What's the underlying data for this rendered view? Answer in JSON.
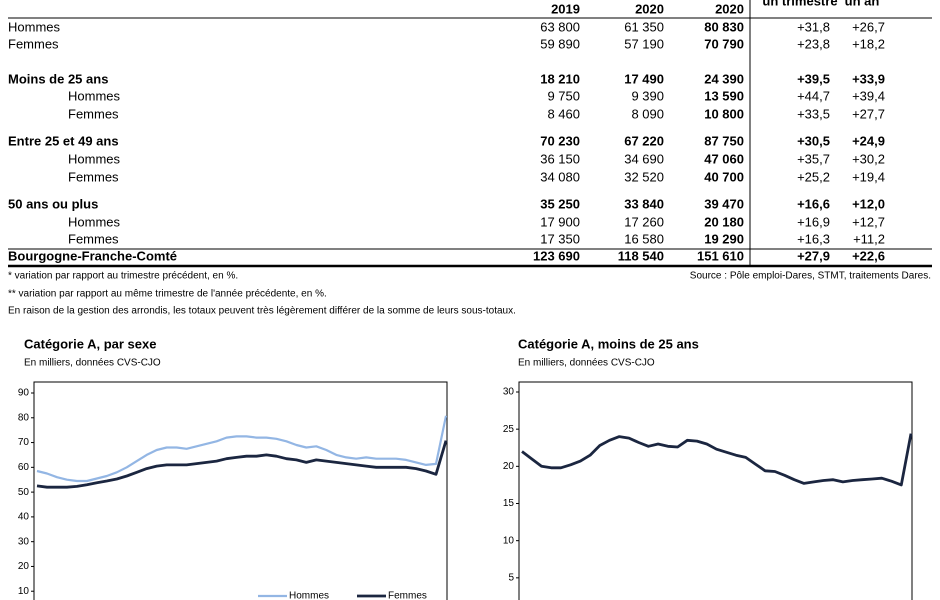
{
  "table": {
    "columns": [
      "2019",
      "2020",
      "2020",
      "un trimestre",
      "un an"
    ],
    "rows": [
      {
        "label": "Hommes",
        "level": 0,
        "bold": false,
        "values": [
          "63 800",
          "61 350",
          "80 830",
          "+31,8",
          "+26,7"
        ]
      },
      {
        "label": "Femmes",
        "level": 0,
        "bold": false,
        "values": [
          "59 890",
          "57 190",
          "70 790",
          "+23,8",
          "+18,2"
        ]
      },
      {
        "label": "Moins de 25 ans",
        "level": 0,
        "bold": true,
        "values": [
          "18 210",
          "17 490",
          "24 390",
          "+39,5",
          "+33,9"
        ]
      },
      {
        "label": "Hommes",
        "level": 1,
        "bold": false,
        "values": [
          "9 750",
          "9 390",
          "13 590",
          "+44,7",
          "+39,4"
        ]
      },
      {
        "label": "Femmes",
        "level": 1,
        "bold": false,
        "values": [
          "8 460",
          "8 090",
          "10 800",
          "+33,5",
          "+27,7"
        ]
      },
      {
        "label": "Entre 25 et 49 ans",
        "level": 0,
        "bold": true,
        "values": [
          "70 230",
          "67 220",
          "87 750",
          "+30,5",
          "+24,9"
        ]
      },
      {
        "label": "Hommes",
        "level": 1,
        "bold": false,
        "values": [
          "36 150",
          "34 690",
          "47 060",
          "+35,7",
          "+30,2"
        ]
      },
      {
        "label": "Femmes",
        "level": 1,
        "bold": false,
        "values": [
          "34 080",
          "32 520",
          "40 700",
          "+25,2",
          "+19,4"
        ]
      },
      {
        "label": "50 ans ou plus",
        "level": 0,
        "bold": true,
        "values": [
          "35 250",
          "33 840",
          "39 470",
          "+16,6",
          "+12,0"
        ]
      },
      {
        "label": "Hommes",
        "level": 1,
        "bold": false,
        "values": [
          "17 900",
          "17 260",
          "20 180",
          "+16,9",
          "+12,7"
        ]
      },
      {
        "label": "Femmes",
        "level": 1,
        "bold": false,
        "values": [
          "17 350",
          "16 580",
          "19 290",
          "+16,3",
          "+11,2"
        ]
      },
      {
        "label": "Bourgogne-Franche-Comté",
        "level": 0,
        "bold": true,
        "values": [
          "123 690",
          "118 540",
          "151 610",
          "+27,9",
          "+22,6"
        ]
      }
    ]
  },
  "notes": [
    "* variation par rapport au trimestre précédent, en %.",
    "** variation par rapport au même trimestre de l'année précédente, en %.",
    "En raison de la gestion des arrondis, les totaux peuvent très légèrement différer de la somme de leurs sous-totaux."
  ],
  "source": "Source : Pôle emploi-Dares, STMT, traitements Dares.",
  "chart_data": [
    {
      "type": "line",
      "title": "Catégorie A, par sexe",
      "subtitle": "En milliers, données CVS-CJO",
      "ylim": [
        0,
        90
      ],
      "yticks": [
        10,
        20,
        30,
        40,
        50,
        60,
        70,
        80,
        90
      ],
      "legend": "bottom",
      "series": [
        {
          "name": "Hommes",
          "color": "#93b6e4",
          "values": [
            58.5,
            57.5,
            56,
            55,
            54.5,
            54.5,
            55.5,
            56.5,
            58,
            60,
            62.5,
            65,
            67,
            68,
            68,
            67.5,
            68.5,
            69.5,
            70.5,
            72,
            72.5,
            72.5,
            72,
            72,
            71.5,
            70.5,
            69,
            68,
            68.5,
            67,
            65,
            64,
            63.5,
            64,
            63.5,
            63.5,
            63.5,
            63,
            62,
            61,
            61.4,
            80.8
          ]
        },
        {
          "name": "Femmes",
          "color": "#1b2640",
          "values": [
            52.5,
            52,
            52,
            52,
            52.3,
            53,
            53.8,
            54.5,
            55.3,
            56.5,
            58,
            59.5,
            60.5,
            61,
            61,
            61,
            61.5,
            62,
            62.5,
            63.5,
            64,
            64.5,
            64.5,
            65,
            64.5,
            63.5,
            63,
            62,
            63,
            62.5,
            62,
            61.5,
            61,
            60.5,
            60,
            60,
            60,
            60,
            59.5,
            58.5,
            57.2,
            70.8
          ]
        }
      ]
    },
    {
      "type": "line",
      "title": "Catégorie A, moins de 25 ans",
      "subtitle": "En milliers, données CVS-CJO",
      "ylim": [
        0,
        30
      ],
      "yticks": [
        5,
        10,
        15,
        20,
        25,
        30
      ],
      "series": [
        {
          "color": "#1b2640",
          "values": [
            22,
            21,
            20,
            19.8,
            19.8,
            20.2,
            20.7,
            21.5,
            22.8,
            23.5,
            24,
            23.8,
            23.2,
            22.7,
            23,
            22.7,
            22.6,
            23.5,
            23.4,
            23,
            22.3,
            21.9,
            21.5,
            21.2,
            20.3,
            19.4,
            19.3,
            18.8,
            18.2,
            17.7,
            17.9,
            18.1,
            18.2,
            17.9,
            18.1,
            18.2,
            18.3,
            18.4,
            18,
            17.5,
            24.4
          ]
        }
      ]
    }
  ]
}
